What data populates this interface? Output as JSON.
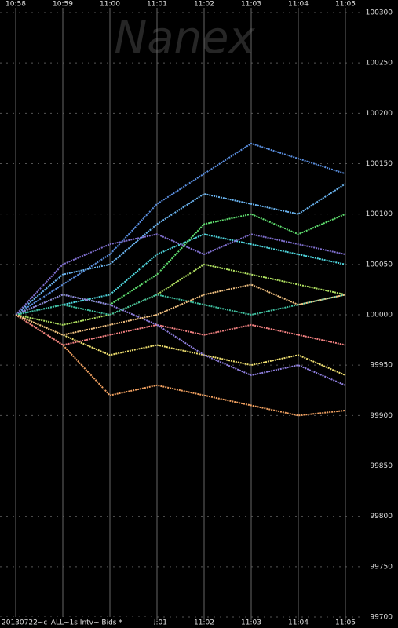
{
  "chart_data": {
    "type": "line",
    "watermark": "Nanex",
    "caption": "20130722~c_ALL~1s Intv~ Bids *",
    "categories": [
      "10:58",
      "10:59",
      "11:00",
      "11:01",
      "11:02",
      "11:03",
      "11:04",
      "11:05"
    ],
    "ylim": [
      99700,
      100300
    ],
    "yticks": [
      99700,
      99750,
      99800,
      99850,
      99900,
      99950,
      100000,
      100050,
      100100,
      100150,
      100200,
      100250,
      100300
    ],
    "grid": true,
    "series": [
      {
        "color": "#5a8fe0",
        "values": [
          100000,
          100030,
          100060,
          100110,
          100140,
          100170,
          100155,
          100140
        ]
      },
      {
        "color": "#6ab4f0",
        "values": [
          100000,
          100040,
          100050,
          100090,
          100120,
          100110,
          100100,
          100130
        ]
      },
      {
        "color": "#50d8e0",
        "values": [
          100000,
          100010,
          100020,
          100060,
          100080,
          100070,
          100060,
          100050
        ]
      },
      {
        "color": "#60e070",
        "values": [
          100000,
          100020,
          100010,
          100040,
          100090,
          100100,
          100080,
          100100
        ]
      },
      {
        "color": "#b0e060",
        "values": [
          100000,
          99990,
          100000,
          100020,
          100050,
          100040,
          100030,
          100020
        ]
      },
      {
        "color": "#f0e070",
        "values": [
          100000,
          99980,
          99960,
          99970,
          99960,
          99950,
          99960,
          99940
        ]
      },
      {
        "color": "#f0a060",
        "values": [
          100000,
          99970,
          99920,
          99930,
          99920,
          99910,
          99900,
          99905
        ]
      },
      {
        "color": "#f08080",
        "values": [
          100000,
          99970,
          99980,
          99990,
          99980,
          99990,
          99980,
          99970
        ]
      },
      {
        "color": "#9080e0",
        "values": [
          100000,
          100020,
          100010,
          99990,
          99960,
          99940,
          99950,
          99930
        ]
      },
      {
        "color": "#40c0a0",
        "values": [
          100000,
          100010,
          100000,
          100020,
          100010,
          100000,
          100010,
          100020
        ]
      },
      {
        "color": "#8070d0",
        "values": [
          100000,
          100050,
          100070,
          100080,
          100060,
          100080,
          100070,
          100060
        ]
      },
      {
        "color": "#f0c080",
        "values": [
          100000,
          99980,
          99990,
          100000,
          100020,
          100030,
          100010,
          100020
        ]
      }
    ]
  }
}
